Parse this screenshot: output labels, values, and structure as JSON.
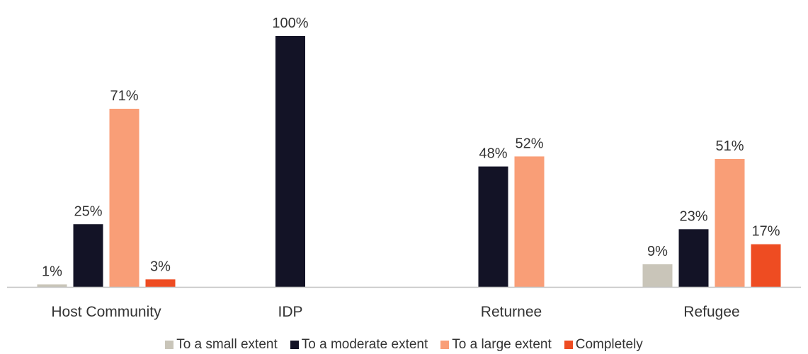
{
  "chart_data": {
    "type": "bar",
    "title": "",
    "xlabel": "",
    "ylabel": "",
    "ylim": [
      0,
      100
    ],
    "grid": false,
    "legend_position": "bottom",
    "categories": [
      "Host Community",
      "IDP",
      "Returnee",
      "Refugee"
    ],
    "series": [
      {
        "name": "To a small extent",
        "color": "#c9c5b9",
        "values": [
          1,
          null,
          null,
          9
        ]
      },
      {
        "name": "To a moderate extent",
        "color": "#131326",
        "values": [
          25,
          100,
          48,
          23
        ]
      },
      {
        "name": "To a large extent",
        "color": "#f99e77",
        "values": [
          71,
          null,
          52,
          51
        ]
      },
      {
        "name": "Completely",
        "color": "#ee4c22",
        "values": [
          3,
          null,
          null,
          17
        ]
      }
    ],
    "value_suffix": "%"
  },
  "colors": {
    "axis": "#bfbfbf",
    "label_text": "#333333"
  }
}
